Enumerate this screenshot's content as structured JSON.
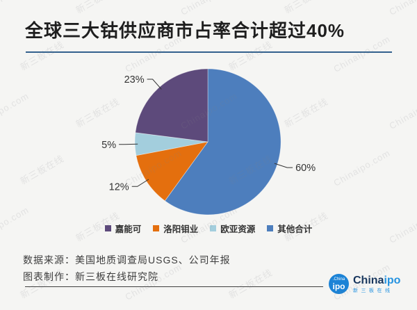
{
  "title": "全球三大钴供应商市占率合计超过40%",
  "chart_data": {
    "type": "pie",
    "title": "全球三大钴供应商市占率合计超过40%",
    "unit": "percent",
    "start_angle_deg": 0,
    "direction": "clockwise",
    "slices": [
      {
        "label": "其他合计",
        "value": 60,
        "data_label": "60%",
        "color": "#4d7ebd"
      },
      {
        "label": "洛阳钼业",
        "value": 12,
        "data_label": "12%",
        "color": "#e46f0e"
      },
      {
        "label": "欧亚资源",
        "value": 5,
        "data_label": "5%",
        "color": "#a3cedd"
      },
      {
        "label": "嘉能可",
        "value": 23,
        "data_label": "23%",
        "color": "#5d4a7b"
      }
    ],
    "legend": [
      {
        "label": "嘉能可",
        "color": "#5d4a7b"
      },
      {
        "label": "洛阳钼业",
        "color": "#e46f0e"
      },
      {
        "label": "欧亚资源",
        "color": "#a3cedd"
      },
      {
        "label": "其他合计",
        "color": "#4d7ebd"
      }
    ],
    "legend_position": "bottom",
    "data_label_color": "#333333",
    "leader_line_color": "#333333"
  },
  "footer": {
    "source_line": "数据来源：美国地质调查局USGS、公司年报",
    "maker_line": "图表制作：新三板在线研究院"
  },
  "logo": {
    "badge_top": ".China",
    "badge_main": "ipo",
    "word_dark": "China",
    "word_blue": "ipo",
    "subtitle": "新三板在线"
  },
  "watermarks": [
    "Chinaipo.com",
    "新三板在线"
  ]
}
